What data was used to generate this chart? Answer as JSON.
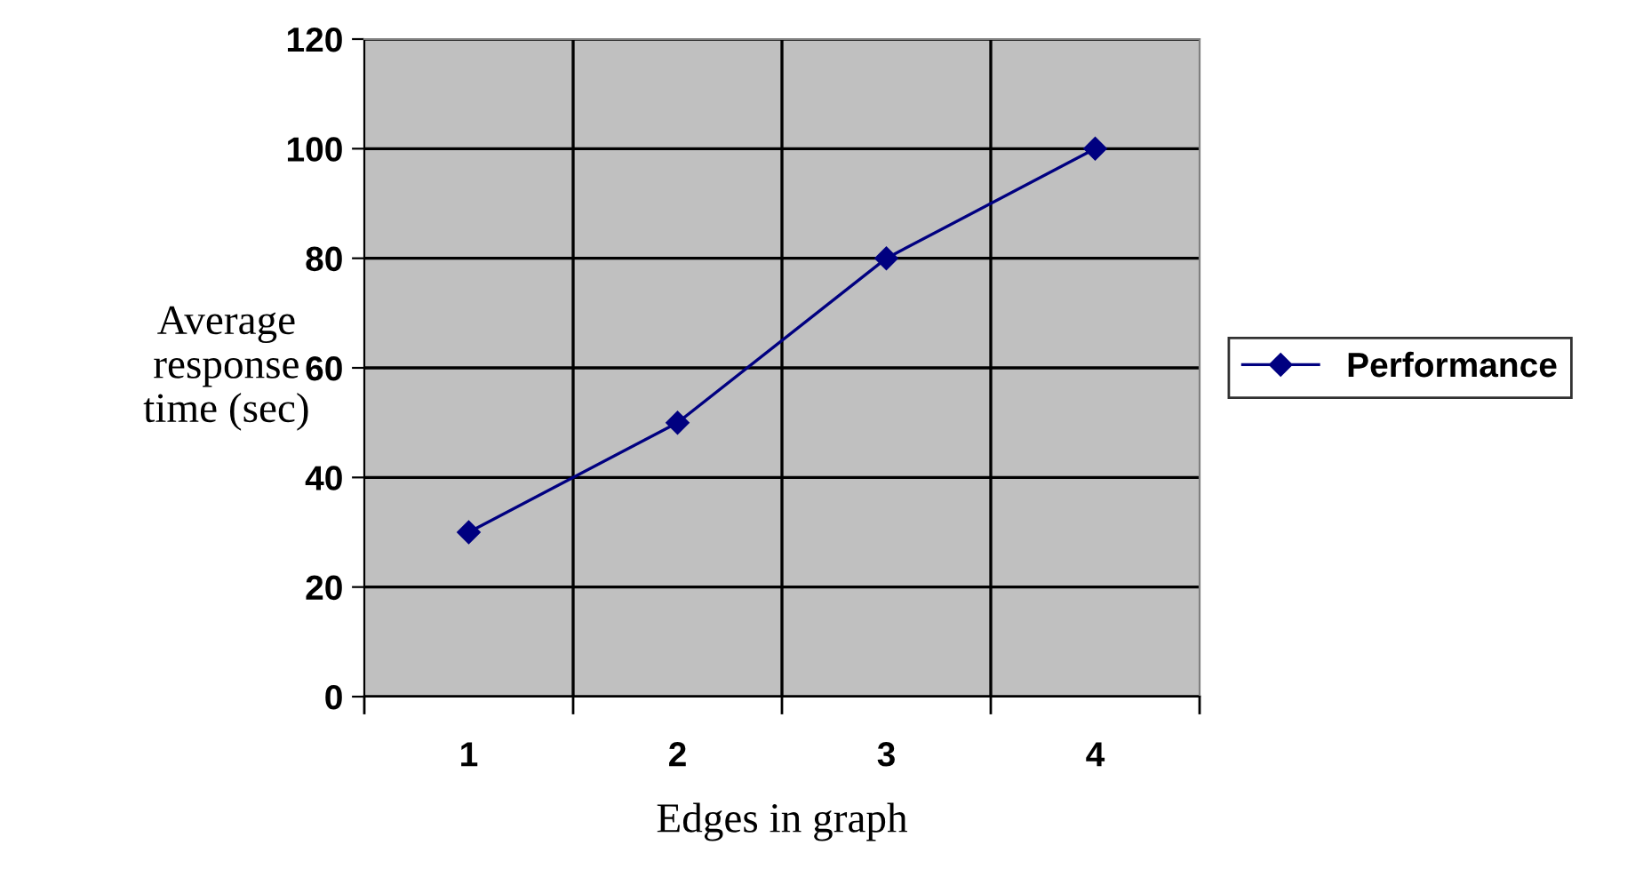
{
  "chart_data": {
    "type": "line",
    "xlabel": "Edges in graph",
    "ylabel": "Average\nresponse\ntime (sec)",
    "categories": [
      "1",
      "2",
      "3",
      "4"
    ],
    "series": [
      {
        "name": "Performance",
        "color": "#000080",
        "values": [
          30,
          50,
          80,
          100
        ]
      }
    ],
    "ylim": [
      0,
      120
    ],
    "yticks": [
      0,
      20,
      40,
      60,
      80,
      100,
      120
    ],
    "grid": true,
    "legend": "right",
    "marker": "diamond",
    "line_style": "solid"
  }
}
